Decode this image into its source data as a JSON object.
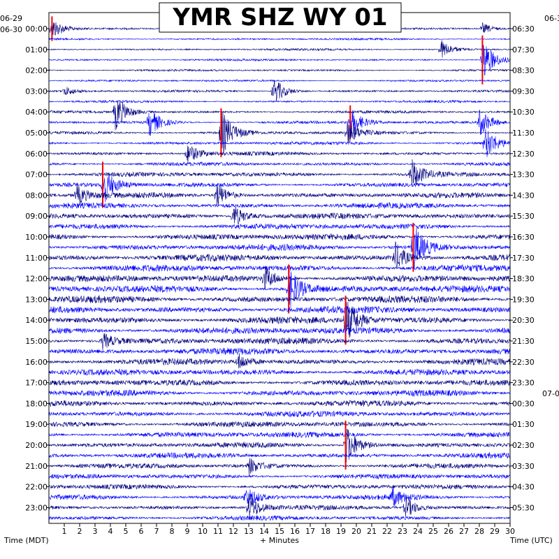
{
  "chart_data": {
    "type": "helicorder",
    "title": "YMR SHZ WY 01",
    "xlabel": "+ Minutes",
    "left_axis_label": "Time (MDT)",
    "right_axis_label": "Time (UTC)",
    "left_dates": [
      "06-29",
      "06-30"
    ],
    "right_dates": [
      "06-3",
      "07-0"
    ],
    "x_ticks": [
      "1",
      "2",
      "3",
      "4",
      "5",
      "6",
      "7",
      "8",
      "9",
      "10",
      "11",
      "12",
      "13",
      "14",
      "15",
      "16",
      "17",
      "18",
      "19",
      "20",
      "21",
      "22",
      "23",
      "24",
      "25",
      "26",
      "27",
      "28",
      "29",
      "30"
    ],
    "xlim": [
      0,
      30
    ],
    "left_hour_labels": [
      "00:00",
      "01:00",
      "02:00",
      "03:00",
      "04:00",
      "05:00",
      "06:00",
      "07:00",
      "08:00",
      "09:00",
      "10:00",
      "11:00",
      "12:00",
      "13:00",
      "14:00",
      "15:00",
      "16:00",
      "17:00",
      "18:00",
      "19:00",
      "20:00",
      "21:00",
      "22:00",
      "23:00"
    ],
    "right_hour_labels": [
      "06:30",
      "07:30",
      "08:30",
      "09:30",
      "10:30",
      "11:30",
      "12:30",
      "13:30",
      "14:30",
      "15:30",
      "16:30",
      "17:30",
      "18:30",
      "19:30",
      "20:30",
      "21:30",
      "22:30",
      "23:30",
      "00:30",
      "01:30",
      "02:30",
      "03:30",
      "04:30",
      "05:30"
    ],
    "trace_colors": [
      "#000080",
      "#0000ff"
    ],
    "clip_color": "#ff0000",
    "rows_per_hour": 2,
    "noise_by_hour": [
      0.5,
      0.5,
      0.5,
      0.55,
      0.7,
      0.8,
      0.9,
      1.1,
      1.3,
      1.4,
      1.5,
      1.6,
      1.7,
      1.7,
      1.7,
      1.6,
      1.5,
      1.5,
      1.4,
      1.4,
      1.3,
      1.2,
      1.2,
      1.1
    ],
    "events": [
      {
        "row": 0,
        "minute": 0.2,
        "amplitude": 16,
        "clipped": true
      },
      {
        "row": 0,
        "minute": 28.2,
        "amplitude": 8
      },
      {
        "row": 2,
        "minute": 25.5,
        "amplitude": 14
      },
      {
        "row": 3,
        "minute": 28.2,
        "amplitude": 34,
        "clipped": true
      },
      {
        "row": 6,
        "minute": 14.6,
        "amplitude": 22
      },
      {
        "row": 6,
        "minute": 1.0,
        "amplitude": 7
      },
      {
        "row": 8,
        "minute": 4.3,
        "amplitude": 28
      },
      {
        "row": 9,
        "minute": 6.5,
        "amplitude": 22
      },
      {
        "row": 9,
        "minute": 19.6,
        "amplitude": 22,
        "clipped": true
      },
      {
        "row": 9,
        "minute": 28.0,
        "amplitude": 22
      },
      {
        "row": 10,
        "minute": 11.2,
        "amplitude": 36,
        "clipped": true
      },
      {
        "row": 10,
        "minute": 19.4,
        "amplitude": 18
      },
      {
        "row": 11,
        "minute": 28.4,
        "amplitude": 24
      },
      {
        "row": 12,
        "minute": 9.0,
        "amplitude": 16
      },
      {
        "row": 14,
        "minute": 23.6,
        "amplitude": 22
      },
      {
        "row": 15,
        "minute": 3.5,
        "amplitude": 30,
        "clipped": true
      },
      {
        "row": 16,
        "minute": 1.8,
        "amplitude": 14
      },
      {
        "row": 16,
        "minute": 10.9,
        "amplitude": 20
      },
      {
        "row": 18,
        "minute": 12.0,
        "amplitude": 18
      },
      {
        "row": 21,
        "minute": 23.7,
        "amplitude": 36,
        "clipped": true
      },
      {
        "row": 22,
        "minute": 22.5,
        "amplitude": 22
      },
      {
        "row": 24,
        "minute": 14.0,
        "amplitude": 18
      },
      {
        "row": 25,
        "minute": 15.6,
        "amplitude": 32,
        "clipped": true
      },
      {
        "row": 28,
        "minute": 19.3,
        "amplitude": 34,
        "clipped": true
      },
      {
        "row": 30,
        "minute": 3.5,
        "amplitude": 12
      },
      {
        "row": 32,
        "minute": 12.3,
        "amplitude": 12
      },
      {
        "row": 40,
        "minute": 19.3,
        "amplitude": 32,
        "clipped": true
      },
      {
        "row": 42,
        "minute": 13.0,
        "amplitude": 12
      },
      {
        "row": 45,
        "minute": 12.8,
        "amplitude": 16
      },
      {
        "row": 45,
        "minute": 22.3,
        "amplitude": 14
      },
      {
        "row": 46,
        "minute": 13.0,
        "amplitude": 20
      },
      {
        "row": 46,
        "minute": 23.2,
        "amplitude": 16
      }
    ]
  }
}
